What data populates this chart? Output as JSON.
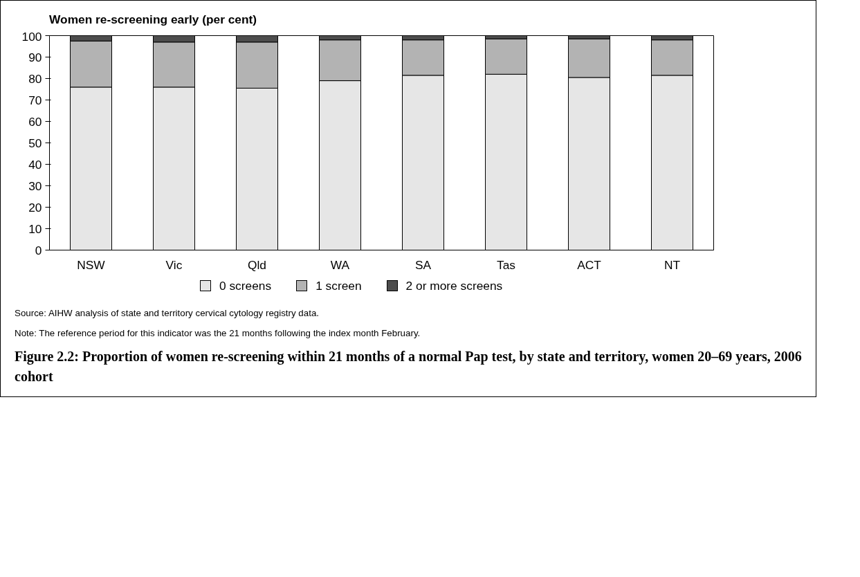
{
  "chart_data": {
    "type": "bar",
    "stacked": true,
    "title": "Figure 2.2: Proportion of women re-screening within 21 months of a normal Pap test, by state and territory, women 20–69 years, 2006 cohort",
    "ylabel": "Women re-screening early (per cent)",
    "categories": [
      "NSW",
      "Vic",
      "Qld",
      "WA",
      "SA",
      "Tas",
      "ACT",
      "NT"
    ],
    "series": [
      {
        "name": "0 screens",
        "color": "#e6e6e6",
        "values": [
          76,
          76,
          75.5,
          79,
          81.5,
          82,
          80.5,
          81.5
        ]
      },
      {
        "name": "1 screen",
        "color": "#b3b3b3",
        "values": [
          21.5,
          21,
          21.5,
          19,
          16.5,
          16.5,
          18,
          16.5
        ]
      },
      {
        "name": "2 or more screens",
        "color": "#4d4d4d",
        "values": [
          2.5,
          3,
          3,
          2,
          2,
          1.5,
          1.5,
          2
        ]
      }
    ],
    "ylim": [
      0,
      100
    ],
    "yticks": [
      0,
      10,
      20,
      30,
      40,
      50,
      60,
      70,
      80,
      90,
      100
    ],
    "grid": false,
    "legend": "bottom",
    "annotations": [
      "Source: AIHW analysis of state and territory cervical cytology registry data.",
      "Note: The reference period for this indicator was the 21 months following the index month February."
    ]
  }
}
